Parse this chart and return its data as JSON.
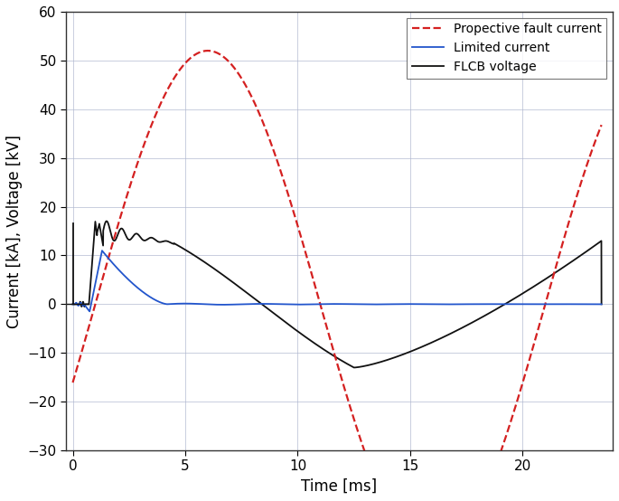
{
  "title": "",
  "xlabel": "Time [ms]",
  "ylabel": "Current [kA], Voltage [kV]",
  "xlim": [
    -0.3,
    24
  ],
  "ylim": [
    -30,
    60
  ],
  "yticks": [
    -30,
    -20,
    -10,
    0,
    10,
    20,
    30,
    40,
    50,
    60
  ],
  "xticks": [
    0,
    5,
    10,
    15,
    20
  ],
  "background_color": "#ffffff",
  "grid_color": "#b0b8d0",
  "font_size": 12,
  "prospective_amplitude": 52,
  "prospective_peak_ms": 6.0,
  "prospective_period_ms": 20.0,
  "lim_current_peak": 11,
  "lim_current_peak_t": 1.3,
  "flcb_spike_peak": 17,
  "flcb_spike_t": 1.0,
  "flcb_plateau": 15.5,
  "flcb_min": -13,
  "flcb_min_t": 12.5,
  "flcb_end": 13,
  "flcb_end_t": 23.5
}
